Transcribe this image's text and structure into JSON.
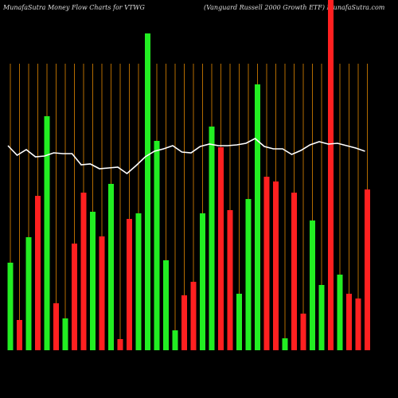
{
  "chart_data": {
    "type": "bar",
    "title": "MunafaSutra  Money Flow  Charts for VTWG",
    "subtitle": "(Vanguard Russell 2000   Growth ETF) MunafaSutra.com",
    "ylim": [
      0,
      440
    ],
    "values": [
      110,
      38,
      142,
      194,
      294,
      59,
      40,
      134,
      198,
      174,
      143,
      209,
      14,
      165,
      172,
      398,
      263,
      113,
      25,
      69,
      86,
      172,
      281,
      255,
      176,
      71,
      190,
      334,
      218,
      212,
      15,
      198,
      46,
      163,
      82,
      440,
      95,
      71,
      65,
      202
    ],
    "colors": [
      "#22ee22",
      "#ff2020",
      "#22ee22",
      "#ff2020",
      "#22ee22",
      "#ff2020",
      "#22ee22",
      "#ff2020",
      "#ff2020",
      "#22ee22",
      "#ff2020",
      "#22ee22",
      "#ff2020",
      "#ff2020",
      "#22ee22",
      "#22ee22",
      "#22ee22",
      "#22ee22",
      "#22ee22",
      "#ff2020",
      "#ff2020",
      "#22ee22",
      "#22ee22",
      "#ff2020",
      "#ff2020",
      "#22ee22",
      "#22ee22",
      "#22ee22",
      "#ff2020",
      "#ff2020",
      "#22ee22",
      "#ff2020",
      "#ff2020",
      "#22ee22",
      "#22ee22",
      "#ff2020",
      "#22ee22",
      "#ff2020",
      "#ff2020",
      "#ff2020"
    ],
    "line": {
      "color": "#ffffff",
      "values": [
        257,
        245,
        252,
        243,
        244,
        248,
        247,
        247,
        233,
        234,
        228,
        229,
        230,
        222,
        232,
        243,
        250,
        253,
        257,
        249,
        248,
        256,
        259,
        257,
        257,
        258,
        260,
        266,
        256,
        253,
        253,
        246,
        251,
        258,
        262,
        259,
        260,
        257,
        254,
        250
      ]
    },
    "grid_color": "#b36b00"
  }
}
